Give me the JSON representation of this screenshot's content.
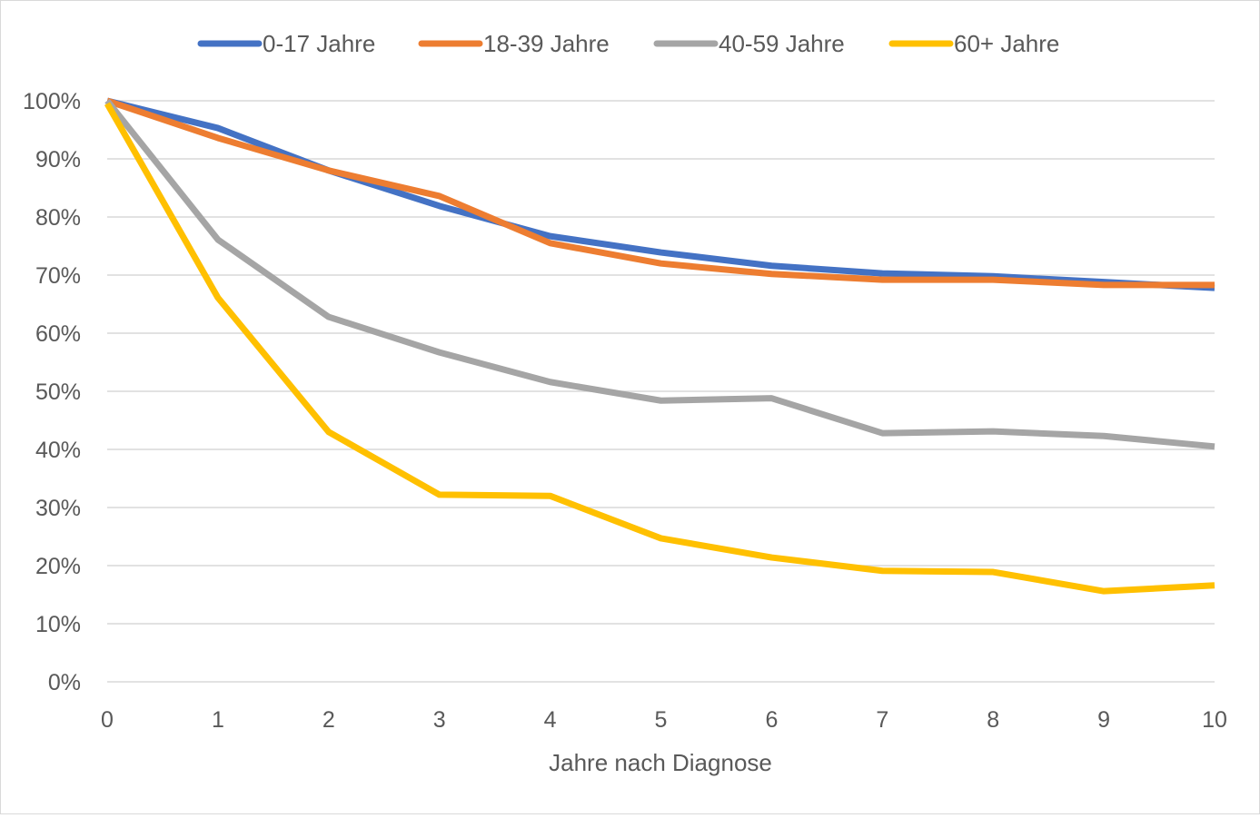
{
  "chart_data": {
    "type": "line",
    "title": "",
    "xlabel": "Jahre nach Diagnose",
    "ylabel": "",
    "x": [
      0,
      1,
      2,
      3,
      4,
      5,
      6,
      7,
      8,
      9,
      10
    ],
    "xlim": [
      0,
      10
    ],
    "ylim": [
      0,
      100
    ],
    "yticks": [
      "0%",
      "10%",
      "20%",
      "30%",
      "40%",
      "50%",
      "60%",
      "70%",
      "80%",
      "90%",
      "100%"
    ],
    "grid": "horizontal",
    "legend_position": "top",
    "series": [
      {
        "name": "0-17 Jahre",
        "color": "#4472C4",
        "values": [
          100,
          95.3,
          88,
          81.9,
          76.7,
          73.9,
          71.6,
          70.3,
          69.8,
          68.8,
          67.8
        ]
      },
      {
        "name": "18-39 Jahre",
        "color": "#ED7D31",
        "values": [
          100,
          93.6,
          88,
          83.6,
          75.5,
          72,
          70.2,
          69.2,
          69.2,
          68.3,
          68.3
        ]
      },
      {
        "name": "40-59 Jahre",
        "color": "#A5A5A5",
        "values": [
          100,
          76.1,
          62.8,
          56.7,
          51.6,
          48.4,
          48.8,
          42.8,
          43.1,
          42.3,
          40.5
        ]
      },
      {
        "name": "60+ Jahre",
        "color": "#FFC000",
        "values": [
          99.5,
          66.1,
          43,
          32.2,
          32,
          24.7,
          21.4,
          19.1,
          18.9,
          15.6,
          16.6
        ]
      }
    ]
  }
}
